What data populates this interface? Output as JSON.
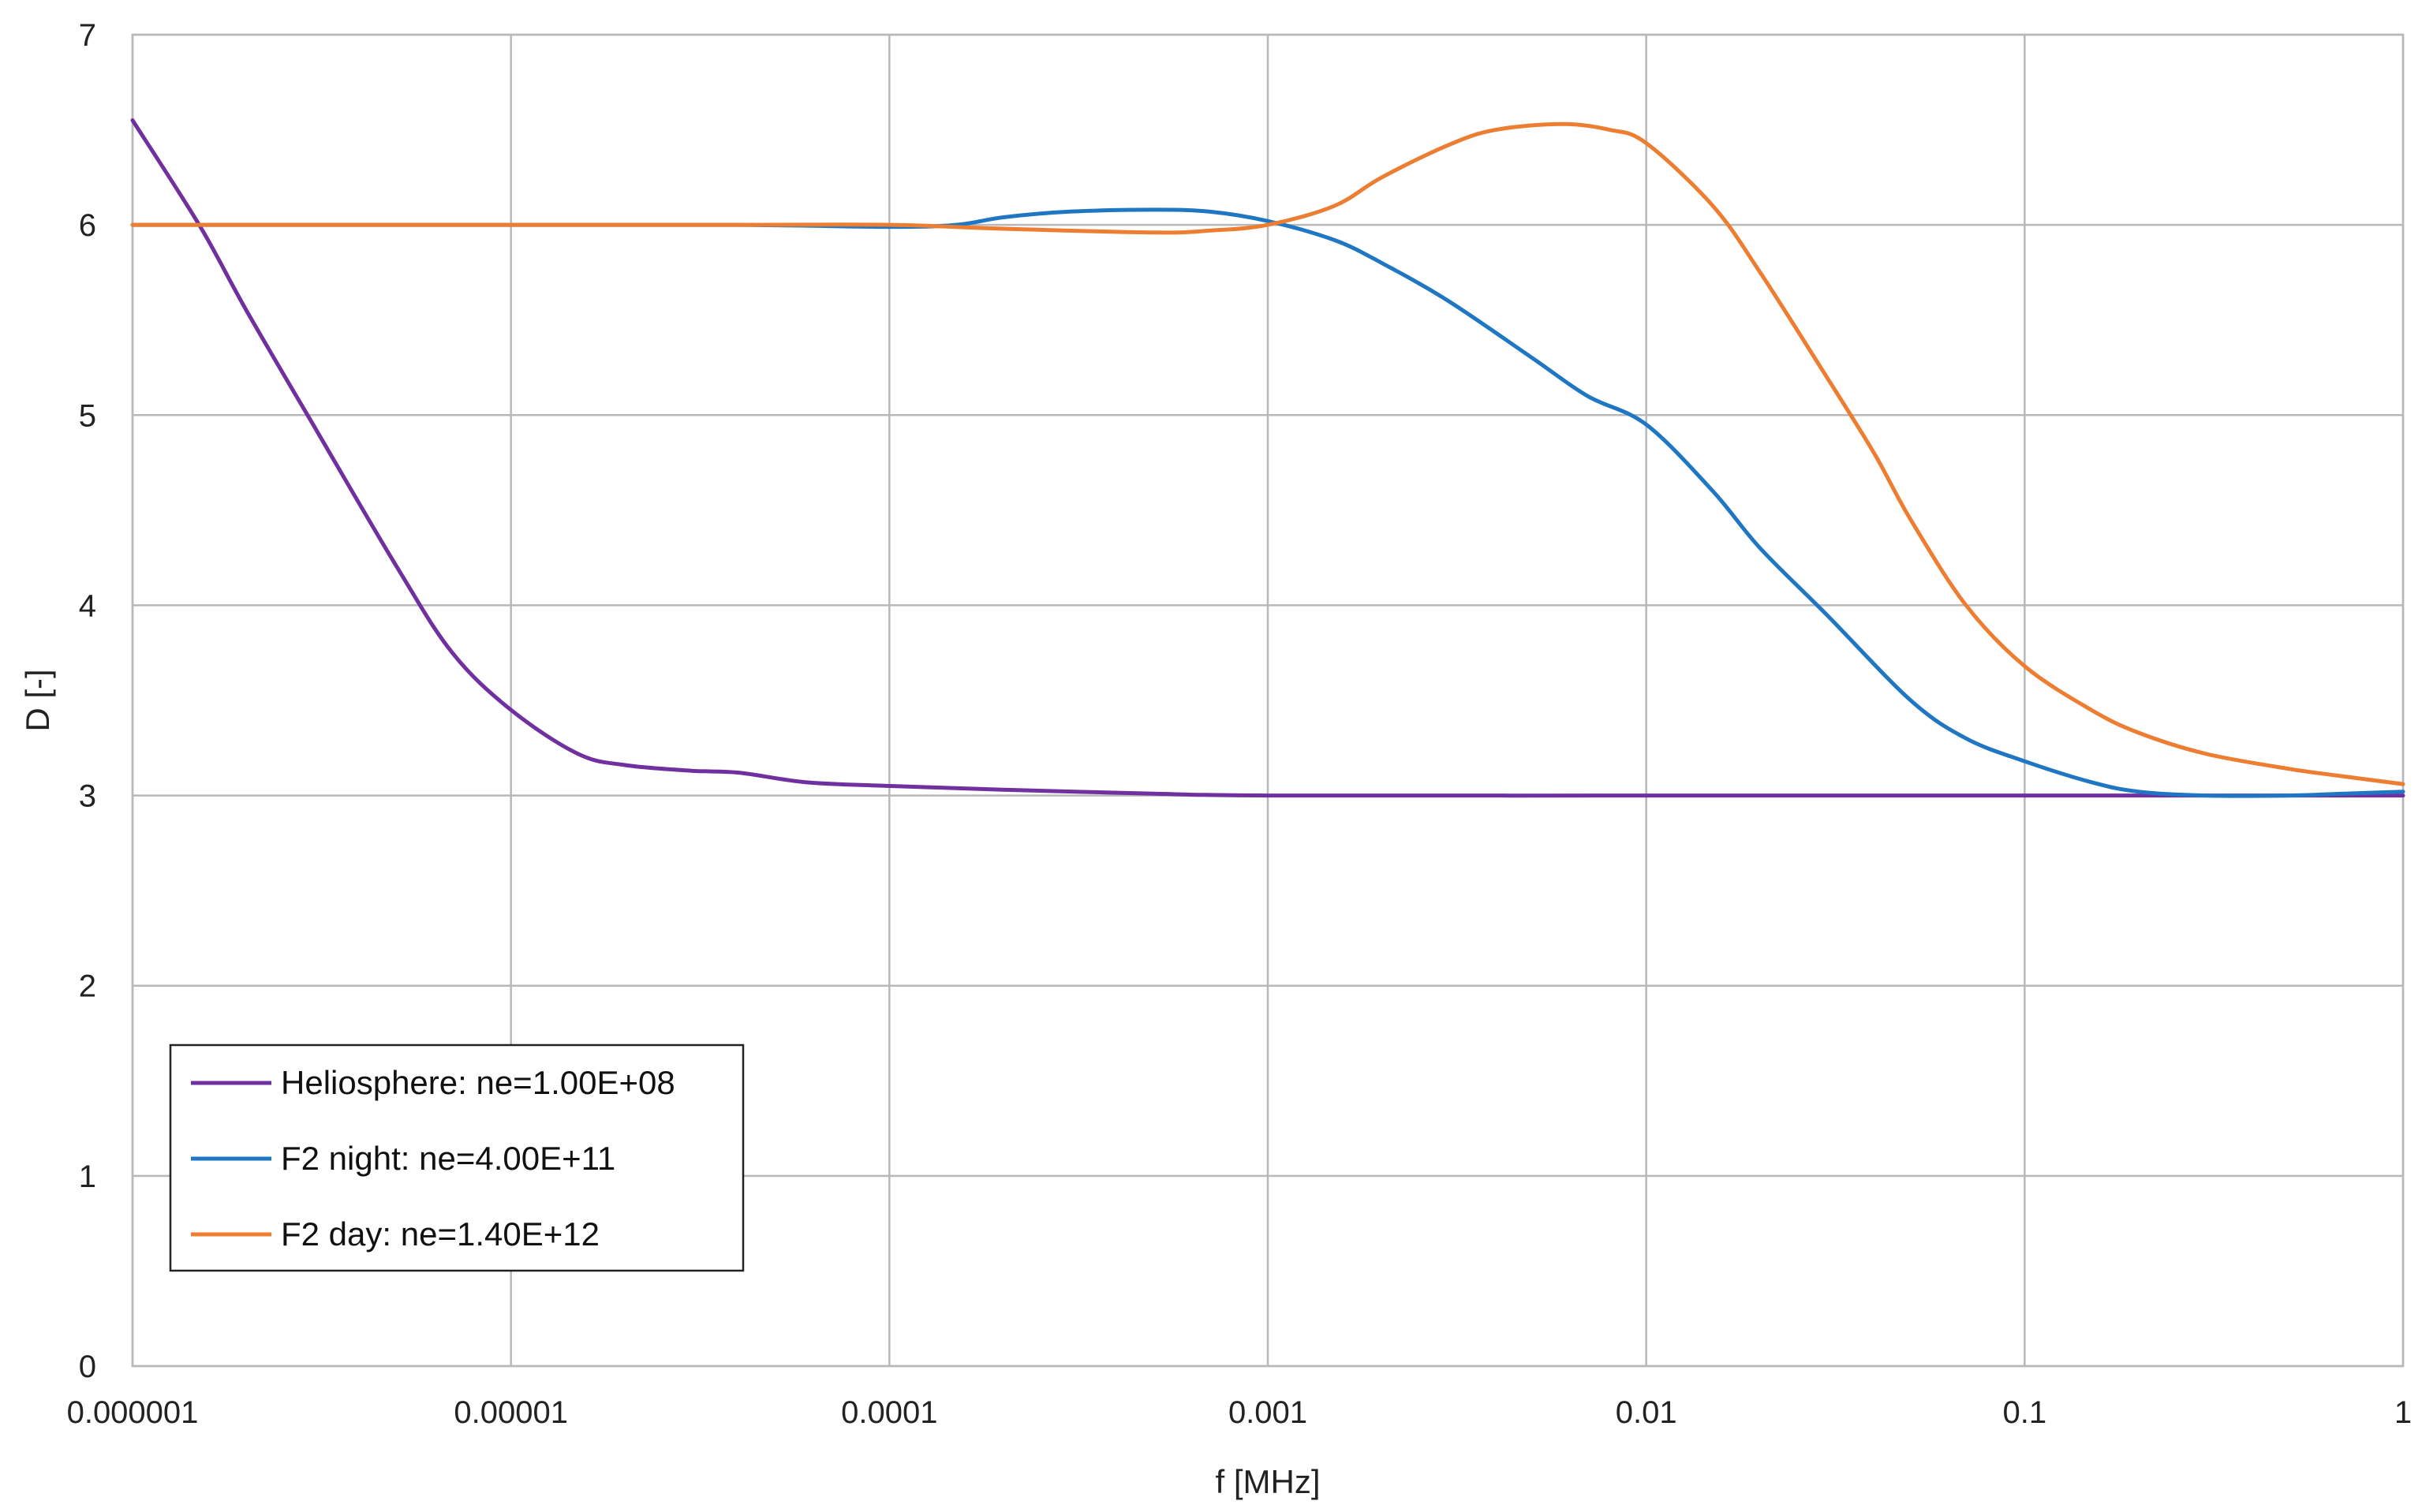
{
  "chart_data": {
    "type": "line",
    "title": "",
    "xlabel": "f [MHz]",
    "ylabel": "D [-]",
    "xscale": "log",
    "xlim": [
      1e-06,
      1
    ],
    "ylim": [
      0,
      7
    ],
    "x_ticks": [
      "0.000001",
      "0.00001",
      "0.0001",
      "0.001",
      "0.01",
      "0.1",
      "1"
    ],
    "y_ticks": [
      "0",
      "1",
      "2",
      "3",
      "4",
      "5",
      "6",
      "7"
    ],
    "grid": true,
    "legend_position": "bottom-left",
    "series": [
      {
        "name": "Heliosphere: ne=1.00E+08",
        "color": "#7030a0",
        "points": [
          [
            1e-06,
            6.55
          ],
          [
            1.5e-06,
            6.0
          ],
          [
            2e-06,
            5.55
          ],
          [
            3e-06,
            4.95
          ],
          [
            5e-06,
            4.2
          ],
          [
            7e-06,
            3.75
          ],
          [
            1e-05,
            3.45
          ],
          [
            1.5e-05,
            3.22
          ],
          [
            2e-05,
            3.16
          ],
          [
            3e-05,
            3.13
          ],
          [
            4e-05,
            3.12
          ],
          [
            6e-05,
            3.07
          ],
          [
            0.0001,
            3.05
          ],
          [
            0.0002,
            3.03
          ],
          [
            0.0005,
            3.01
          ],
          [
            0.001,
            3.0
          ],
          [
            0.01,
            3.0
          ],
          [
            0.1,
            3.0
          ],
          [
            1,
            3.0
          ]
        ]
      },
      {
        "name": "F2 night: ne=4.00E+11",
        "color": "#1f77c4",
        "points": [
          [
            1e-06,
            6.0
          ],
          [
            1e-05,
            6.0
          ],
          [
            4e-05,
            6.0
          ],
          [
            0.0001,
            5.99
          ],
          [
            0.00015,
            6.0
          ],
          [
            0.0002,
            6.04
          ],
          [
            0.0003,
            6.07
          ],
          [
            0.0005,
            6.08
          ],
          [
            0.0007,
            6.07
          ],
          [
            0.001,
            6.02
          ],
          [
            0.0015,
            5.92
          ],
          [
            0.002,
            5.8
          ],
          [
            0.003,
            5.6
          ],
          [
            0.005,
            5.3
          ],
          [
            0.007,
            5.1
          ],
          [
            0.01,
            4.95
          ],
          [
            0.015,
            4.6
          ],
          [
            0.02,
            4.3
          ],
          [
            0.03,
            3.95
          ],
          [
            0.05,
            3.5
          ],
          [
            0.07,
            3.3
          ],
          [
            0.1,
            3.18
          ],
          [
            0.15,
            3.07
          ],
          [
            0.2,
            3.02
          ],
          [
            0.3,
            3.0
          ],
          [
            0.5,
            3.0
          ],
          [
            0.7,
            3.01
          ],
          [
            1,
            3.02
          ]
        ]
      },
      {
        "name": "F2 day: ne=1.40E+12",
        "color": "#ed7d31",
        "points": [
          [
            1e-06,
            6.0
          ],
          [
            1e-05,
            6.0
          ],
          [
            4e-05,
            6.0
          ],
          [
            0.0001,
            6.0
          ],
          [
            0.0002,
            5.98
          ],
          [
            0.0005,
            5.96
          ],
          [
            0.0007,
            5.97
          ],
          [
            0.001,
            6.0
          ],
          [
            0.0015,
            6.1
          ],
          [
            0.002,
            6.25
          ],
          [
            0.003,
            6.42
          ],
          [
            0.004,
            6.5
          ],
          [
            0.006,
            6.53
          ],
          [
            0.008,
            6.5
          ],
          [
            0.01,
            6.43
          ],
          [
            0.015,
            6.1
          ],
          [
            0.02,
            5.75
          ],
          [
            0.03,
            5.2
          ],
          [
            0.04,
            4.8
          ],
          [
            0.05,
            4.45
          ],
          [
            0.07,
            4.0
          ],
          [
            0.1,
            3.68
          ],
          [
            0.15,
            3.45
          ],
          [
            0.2,
            3.33
          ],
          [
            0.3,
            3.22
          ],
          [
            0.5,
            3.14
          ],
          [
            0.7,
            3.1
          ],
          [
            1,
            3.06
          ]
        ]
      }
    ]
  }
}
